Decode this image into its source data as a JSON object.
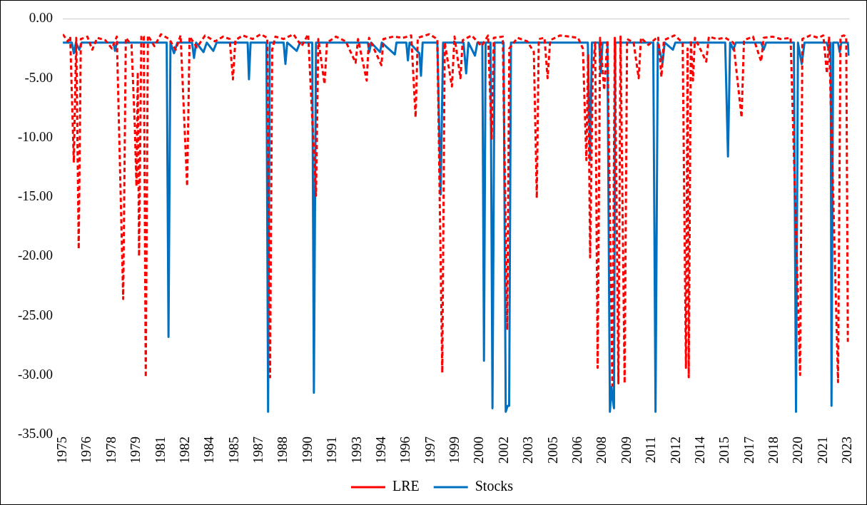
{
  "chart_data": {
    "type": "line",
    "xlim": [
      1975,
      2023.1
    ],
    "ylim": [
      -35,
      0
    ],
    "xticks": [
      {
        "value": 1975,
        "label": "1975"
      },
      {
        "value": 1976.5,
        "label": "1976"
      },
      {
        "value": 1978,
        "label": "1978"
      },
      {
        "value": 1979.5,
        "label": "1979"
      },
      {
        "value": 1981,
        "label": "1981"
      },
      {
        "value": 1982.5,
        "label": "1982"
      },
      {
        "value": 1984,
        "label": "1984"
      },
      {
        "value": 1985.5,
        "label": "1985"
      },
      {
        "value": 1987,
        "label": "1987"
      },
      {
        "value": 1988.5,
        "label": "1988"
      },
      {
        "value": 1990,
        "label": "1990"
      },
      {
        "value": 1991.5,
        "label": "1991"
      },
      {
        "value": 1993,
        "label": "1993"
      },
      {
        "value": 1994.5,
        "label": "1994"
      },
      {
        "value": 1996,
        "label": "1996"
      },
      {
        "value": 1997.5,
        "label": "1997"
      },
      {
        "value": 1999,
        "label": "1999"
      },
      {
        "value": 2000.5,
        "label": "2000"
      },
      {
        "value": 2002,
        "label": "2002"
      },
      {
        "value": 2003.5,
        "label": "2003"
      },
      {
        "value": 2005,
        "label": "2005"
      },
      {
        "value": 2006.5,
        "label": "2006"
      },
      {
        "value": 2008,
        "label": "2008"
      },
      {
        "value": 2009.5,
        "label": "2009"
      },
      {
        "value": 2011,
        "label": "2011"
      },
      {
        "value": 2012.5,
        "label": "2012"
      },
      {
        "value": 2014,
        "label": "2014"
      },
      {
        "value": 2015.5,
        "label": "2015"
      },
      {
        "value": 2017,
        "label": "2017"
      },
      {
        "value": 2018.5,
        "label": "2018"
      },
      {
        "value": 2020,
        "label": "2020"
      },
      {
        "value": 2021.5,
        "label": "2021"
      },
      {
        "value": 2023,
        "label": "2023"
      }
    ],
    "yticks": [
      {
        "value": 0,
        "label": "0.00"
      },
      {
        "value": -5,
        "label": "-5.00"
      },
      {
        "value": -10,
        "label": "-10.00"
      },
      {
        "value": -15,
        "label": "-15.00"
      },
      {
        "value": -20,
        "label": "-20.00"
      },
      {
        "value": -25,
        "label": "-25.00"
      },
      {
        "value": -30,
        "label": "-30.00"
      },
      {
        "value": -35,
        "label": "-35.00"
      }
    ],
    "grid": false,
    "legend": "bottom",
    "marker": "none",
    "ref_lines": [
      {
        "axis": "y",
        "value": 0,
        "color": "#d9d9d9"
      }
    ],
    "series": [
      {
        "name": "LRE",
        "color": "#ff0000",
        "line_style": "dashed",
        "x": [
          1975.0,
          1975.3,
          1975.45,
          1975.67,
          1975.82,
          1975.97,
          1976.1,
          1976.5,
          1976.8,
          1977.1,
          1977.6,
          1978.0,
          1978.3,
          1978.69,
          1978.85,
          1979.2,
          1979.4,
          1979.5,
          1979.58,
          1979.66,
          1979.8,
          1979.95,
          1980.07,
          1980.2,
          1980.6,
          1981.0,
          1981.5,
          1981.9,
          1982.2,
          1982.6,
          1982.75,
          1983.2,
          1983.7,
          1984.3,
          1984.8,
          1985.2,
          1985.4,
          1985.55,
          1986.0,
          1986.6,
          1987.1,
          1987.5,
          1987.67,
          1987.8,
          1988.0,
          1988.5,
          1989.1,
          1989.6,
          1990.0,
          1990.48,
          1990.62,
          1991.0,
          1991.15,
          1991.7,
          1992.3,
          1992.9,
          1993.05,
          1993.58,
          1993.72,
          1994.48,
          1994.6,
          1995.2,
          1995.8,
          1996.3,
          1996.57,
          1996.7,
          1997.4,
          1997.9,
          1998.2,
          1998.35,
          1998.79,
          1998.95,
          1999.31,
          1999.45,
          2000.0,
          2000.6,
          2001.0,
          2001.22,
          2001.35,
          2001.9,
          2002.17,
          2002.3,
          2002.8,
          2003.4,
          2003.8,
          2003.98,
          2004.1,
          2004.45,
          2004.64,
          2004.8,
          2005.4,
          2006.0,
          2006.5,
          2006.8,
          2007.01,
          2007.12,
          2007.24,
          2007.4,
          2007.55,
          2007.7,
          2007.85,
          2008.1,
          2008.3,
          2008.6,
          2008.75,
          2008.97,
          2009.1,
          2009.35,
          2009.5,
          2009.9,
          2010.21,
          2010.35,
          2010.8,
          2011.4,
          2011.6,
          2011.75,
          2012.4,
          2012.9,
          2013.1,
          2013.2,
          2013.27,
          2013.4,
          2013.53,
          2013.65,
          2014.34,
          2014.5,
          2015.0,
          2015.5,
          2016.0,
          2016.5,
          2016.65,
          2017.2,
          2017.7,
          2017.85,
          2018.4,
          2018.9,
          2019.5,
          2020.08,
          2020.22,
          2020.7,
          2021.2,
          2021.5,
          2021.72,
          2021.85,
          2022.4,
          2022.55,
          2022.75,
          2022.9,
          2023.0
        ],
        "values": [
          -1.3,
          -1.9,
          -1.5,
          -12.1,
          -1.6,
          -19.4,
          -1.7,
          -1.5,
          -2.6,
          -1.6,
          -1.8,
          -2.5,
          -1.5,
          -23.6,
          -1.6,
          -2.2,
          -9.0,
          -14.1,
          -4.5,
          -20.0,
          -1.4,
          -1.5,
          -30.2,
          -1.4,
          -2.3,
          -1.3,
          -1.7,
          -2.6,
          -1.4,
          -14.1,
          -1.5,
          -2.4,
          -1.4,
          -1.9,
          -1.5,
          -1.7,
          -5.1,
          -1.8,
          -1.4,
          -1.7,
          -1.3,
          -1.6,
          -30.2,
          -2.6,
          -1.5,
          -1.7,
          -1.3,
          -2.3,
          -1.3,
          -14.9,
          -1.7,
          -5.5,
          -2.0,
          -1.5,
          -1.9,
          -3.7,
          -1.7,
          -5.2,
          -1.6,
          -3.9,
          -1.7,
          -1.5,
          -1.6,
          -1.4,
          -8.3,
          -1.6,
          -1.3,
          -1.7,
          -29.8,
          -2.0,
          -5.7,
          -1.5,
          -5.0,
          -1.8,
          -1.4,
          -2.3,
          -1.4,
          -10.1,
          -1.6,
          -1.5,
          -26.2,
          -2.5,
          -1.6,
          -1.9,
          -2.8,
          -15.1,
          -1.7,
          -1.6,
          -5.0,
          -1.8,
          -1.4,
          -1.5,
          -1.6,
          -2.5,
          -11.9,
          -3.0,
          -20.1,
          -4.5,
          -2.0,
          -29.4,
          -1.6,
          -6.0,
          -1.8,
          -30.9,
          -1.6,
          -30.7,
          -1.5,
          -30.7,
          -1.7,
          -2.0,
          -5.0,
          -1.6,
          -2.2,
          -1.5,
          -4.9,
          -1.8,
          -1.4,
          -2.0,
          -29.4,
          -2.5,
          -30.2,
          -1.8,
          -5.2,
          -1.6,
          -3.6,
          -1.5,
          -1.7,
          -1.6,
          -2.0,
          -8.3,
          -1.8,
          -1.5,
          -3.6,
          -1.6,
          -1.5,
          -1.7,
          -1.6,
          -30.0,
          -1.7,
          -1.4,
          -1.6,
          -1.4,
          -4.6,
          -1.5,
          -30.6,
          -1.5,
          -1.4,
          -1.5,
          -27.2
        ]
      },
      {
        "name": "Stocks",
        "color": "#0070c0",
        "line_style": "solid",
        "x": [
          1975.0,
          1975.55,
          1975.67,
          1975.8,
          1976.0,
          1976.15,
          1978.1,
          1978.19,
          1978.3,
          1981.35,
          1981.46,
          1981.58,
          1981.8,
          1982.0,
          1982.9,
          1983.02,
          1983.15,
          1983.6,
          1983.8,
          1984.2,
          1984.4,
          1986.3,
          1986.38,
          1986.48,
          1987.45,
          1987.55,
          1987.65,
          1988.5,
          1988.61,
          1988.72,
          1989.3,
          1989.5,
          1990.25,
          1990.35,
          1990.48,
          1993.65,
          1993.74,
          1993.85,
          1994.4,
          1994.5,
          1995.3,
          1995.4,
          1996.0,
          1996.1,
          1996.2,
          1996.8,
          1996.9,
          1997.0,
          1997.9,
          1998.1,
          1998.25,
          1999.5,
          1999.66,
          1999.8,
          2000.2,
          2000.35,
          2000.65,
          2000.75,
          2000.85,
          2001.15,
          2001.27,
          2001.4,
          2001.95,
          2002.08,
          2002.2,
          2002.29,
          2002.4,
          2005.5,
          2006.8,
          2007.1,
          2007.24,
          2007.35,
          2007.8,
          2007.89,
          2008.0,
          2008.3,
          2008.45,
          2008.55,
          2008.62,
          2008.7,
          2008.78,
          2011.1,
          2011.24,
          2011.38,
          2011.67,
          2011.8,
          2012.3,
          2012.45,
          2015.5,
          2015.67,
          2015.8,
          2016.0,
          2016.15,
          2017.7,
          2017.85,
          2018.0,
          2019.7,
          2019.83,
          2019.95,
          2020.18,
          2020.35,
          2021.7,
          2021.9,
          2021.95,
          2022.0,
          2022.1,
          2022.4,
          2022.5,
          2022.6,
          2023.0,
          2023.06
        ],
        "values": [
          -2.0,
          -2.0,
          -2.9,
          -2.0,
          -2.6,
          -2.0,
          -2.0,
          -2.7,
          -2.0,
          -2.0,
          -26.8,
          -2.0,
          -2.9,
          -2.0,
          -2.0,
          -3.3,
          -2.0,
          -2.8,
          -2.0,
          -2.7,
          -2.0,
          -2.0,
          -5.1,
          -2.0,
          -2.0,
          -33.1,
          -2.0,
          -2.0,
          -3.8,
          -2.0,
          -2.7,
          -2.0,
          -2.0,
          -31.5,
          -2.0,
          -2.0,
          -2.8,
          -2.0,
          -2.8,
          -2.0,
          -3.0,
          -2.0,
          -2.0,
          -3.5,
          -2.0,
          -2.9,
          -4.8,
          -2.0,
          -2.0,
          -14.8,
          -2.0,
          -2.0,
          -4.6,
          -2.0,
          -3.1,
          -2.0,
          -2.0,
          -28.8,
          -2.0,
          -2.0,
          -32.8,
          -2.0,
          -2.0,
          -33.1,
          -32.6,
          -32.6,
          -2.0,
          -2.0,
          -2.0,
          -2.0,
          -11.9,
          -2.0,
          -2.0,
          -4.6,
          -2.0,
          -2.0,
          -33.1,
          -31.0,
          -32.0,
          -32.8,
          -2.0,
          -2.0,
          -33.1,
          -2.0,
          -3.7,
          -2.0,
          -2.6,
          -2.0,
          -2.0,
          -11.6,
          -2.0,
          -2.6,
          -2.0,
          -2.0,
          -2.6,
          -2.0,
          -2.0,
          -33.1,
          -2.0,
          -3.8,
          -2.0,
          -2.0,
          -2.8,
          -2.0,
          -32.6,
          -2.0,
          -2.0,
          -2.8,
          -2.0,
          -2.0,
          -3.1
        ]
      }
    ]
  }
}
